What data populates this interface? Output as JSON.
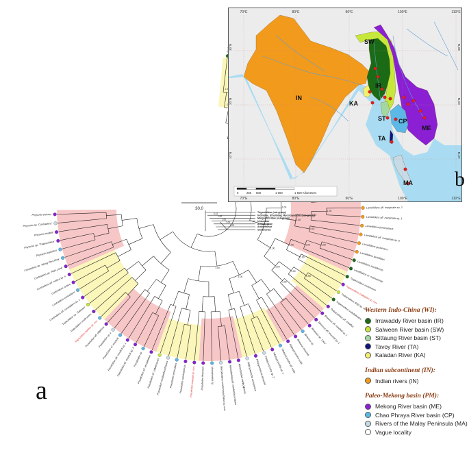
{
  "figure": {
    "panel_a_letter": "a",
    "panel_b_letter": "b",
    "scale_value": "30.0"
  },
  "colors": {
    "IR": "#1b6b16",
    "SW": "#c6e83a",
    "ST": "#a3d9a0",
    "TA": "#10137a",
    "KA": "#f5ef6e",
    "IN": "#f29a1c",
    "ME": "#8a1fd4",
    "CP": "#5cb8e6",
    "MA": "#c7dbe6",
    "VA": "#ffffff",
    "clade_pink": "#f7c6c6",
    "clade_yellow": "#fbf6b9",
    "new_species_red": "#e0302b",
    "ocean": "#a9dcf2",
    "land_gray": "#ececec",
    "rivers": "#5f9fd6"
  },
  "legend": {
    "wi_heading": "Western Indo-China (WI):",
    "in_heading": "Indian subcontinent (IN):",
    "pm_heading": "Paleo-Mekong basin (PM):",
    "items_wi": [
      {
        "key": "IR",
        "label": "Irrawaddy River basin (IR)"
      },
      {
        "key": "SW",
        "label": "Salween River basin (SW)"
      },
      {
        "key": "ST",
        "label": "Sittaung River basin (ST)"
      },
      {
        "key": "TA",
        "label": "Tavoy River (TA)"
      },
      {
        "key": "KA",
        "label": "Kaladan River (KA)"
      }
    ],
    "items_in": [
      {
        "key": "IN",
        "label": "Indian rivers (IN)"
      }
    ],
    "items_pm": [
      {
        "key": "ME",
        "label": "Mekong River basin (ME)"
      },
      {
        "key": "CP",
        "label": "Chao Phraya River basin (CP)"
      },
      {
        "key": "MA",
        "label": "Rivers of the Malay Peninsula (MA)"
      },
      {
        "key": "VA",
        "label": "Vague locality"
      }
    ]
  },
  "map": {
    "top_longitudes": [
      "70°E",
      "80°E",
      "90°E",
      "100°E",
      "110°E"
    ],
    "bottom_longitudes": [
      "70°E",
      "80°E",
      "90°E",
      "100°E",
      "110°E"
    ],
    "left_latitudes": [
      "30°N",
      "20°N",
      "10°N"
    ],
    "right_latitudes": [
      "30°N",
      "20°N",
      "10°N"
    ],
    "region_labels": [
      {
        "key": "SW",
        "label": "SW"
      },
      {
        "key": "IR",
        "label": "IR"
      },
      {
        "key": "IN",
        "label": "IN"
      },
      {
        "key": "KA",
        "label": "KA"
      },
      {
        "key": "ST",
        "label": "ST"
      },
      {
        "key": "CP",
        "label": "CP"
      },
      {
        "key": "ME",
        "label": "ME"
      },
      {
        "key": "TA",
        "label": "TA"
      },
      {
        "key": "MA",
        "label": "MA"
      }
    ],
    "scale_ticks": [
      "0",
      "250",
      "500",
      "1 000",
      "1 500 Kilometers"
    ]
  },
  "outgroups": [
    "Trigonioidae (out-group)",
    "Iridinidae, Etheriidae, Mycetopodidae (out-group)",
    "Margaritiferidae (out-group)",
    "Unionidae",
    "Anodontinae",
    "Ambleminae",
    "Gonideinae"
  ],
  "outgroup_supports": [
    "0.42",
    "1.00",
    "1.00",
    "1.00",
    "1.00"
  ],
  "tree_labels": [
    {
      "t": "Radiatula myitkyinae",
      "k": "IR"
    },
    {
      "t": "Radiatula mouhoti sp. nov.",
      "k": "ME",
      "red": true
    },
    {
      "t": "Radiatula cf. mouhoti",
      "k": "ME"
    },
    {
      "t": "Radiatula sp. from Laos",
      "k": "ME"
    },
    {
      "t": "Radiatula chaudhuri",
      "k": "IR"
    },
    {
      "t": "Radiatula aff. lopisi",
      "k": "IR"
    },
    {
      "t": "Radiatula pilvaensis",
      "k": "IR"
    },
    {
      "t": "Radiatula sp. 'Khlong'",
      "k": "CP"
    },
    {
      "t": "Radiatula aff. mandalayensis",
      "k": "IR"
    },
    {
      "t": "Indochinella pugio",
      "k": "IR"
    },
    {
      "t": "Indochinella sp. 2",
      "k": "IR"
    },
    {
      "t": "Leoparreysia aff. burmana",
      "k": "IR"
    },
    {
      "t": "Leoparreysia aff. tavoyensis",
      "k": "TA"
    },
    {
      "t": "Leoparreysia caudata sp. nov.",
      "k": "TA",
      "red": true
    },
    {
      "t": "Leoparreysia aff. khadakvaslaensis",
      "k": "IN"
    },
    {
      "t": "Leoparreysia aff. corrugata",
      "k": "IN"
    },
    {
      "t": "Leoparreysia bhamoensis",
      "k": "IR"
    },
    {
      "t": "Parreysia cf. corrugata sp. 3",
      "k": "IN"
    },
    {
      "t": "Parreysia cf. corrugata",
      "k": "IN"
    },
    {
      "t": "Parreysia cf. corrugata sp. 1",
      "k": "IN"
    },
    {
      "t": "Parreysia cf. favidens",
      "k": "IN"
    },
    {
      "t": "Lamellidens aff. marginalis sp. 5",
      "k": "IN"
    },
    {
      "t": "Lamellidens aff. marginalis sp. 4",
      "k": "IN"
    },
    {
      "t": "Lamellidens aff. marginalis sp. 3",
      "k": "IN"
    },
    {
      "t": "Lamellidens brandti sp. nov.",
      "k": "IN",
      "red": true
    },
    {
      "t": "Lamellidens aff. marginalis sp. 2",
      "k": "IN"
    },
    {
      "t": "Lamellidens aff. marginalis sp. 1",
      "k": "IN"
    },
    {
      "t": "Lamellidens jenkinsianus",
      "k": "IN"
    },
    {
      "t": "Lamellidens aff. marginalis sp. 6",
      "k": "IN"
    },
    {
      "t": "Lamellidens generosus",
      "k": "IN"
    },
    {
      "t": "Lamellidens lamellatus",
      "k": "IN"
    },
    {
      "t": "Lamellidens savadiensis",
      "k": "IR"
    },
    {
      "t": "Lamellidens cf. mainwaringi",
      "k": "IR"
    },
    {
      "t": "Trapezoideus exolescens",
      "k": "IR"
    },
    {
      "t": "Trapezoideus pallegoixi sp. nov.",
      "k": "ME",
      "red": true
    },
    {
      "t": "Trapezoideus dalyi sp. nov.",
      "k": "SW"
    },
    {
      "t": "Trapezoideus subclathratus",
      "k": "IR"
    },
    {
      "t": "Trapezoideus aff. misellus",
      "k": "ME"
    },
    {
      "t": "Bineurus aff. mouhoti sp. 1",
      "k": "ME"
    },
    {
      "t": "Bineurus aff. mouhoti sp. 2",
      "k": "ME"
    },
    {
      "t": "Bineurus sp. 'Laos'",
      "k": "ME"
    },
    {
      "t": "Bineurus sp.",
      "k": "CP"
    },
    {
      "t": "Bineurus mouhoti",
      "k": "ME"
    },
    {
      "t": "Pilsbryoconcha exilis",
      "k": "ME"
    },
    {
      "t": "Pilsbryoconcha aff. exilis",
      "k": "CP"
    },
    {
      "t": "Pilsbryoconcha sp. 1",
      "k": "ME"
    },
    {
      "t": "Pilsbryoconcha sp. 2",
      "k": "MA"
    },
    {
      "t": "Pilsbryoconcha lemeslei",
      "k": "ME"
    },
    {
      "t": "Pilsbryoconcha compressa",
      "k": "MA"
    },
    {
      "t": "Monodontina cambodjensis",
      "k": "ME"
    },
    {
      "t": "Monodontina aff. vondembuschiana",
      "k": "ME"
    },
    {
      "t": "Monodontina vondembuschiana sp. nov.",
      "k": "MA"
    },
    {
      "t": "Monodontina sp.",
      "k": "CP"
    },
    {
      "t": "Pseudodon thomsoni",
      "k": "ME"
    },
    {
      "t": "Pseudodon manueli sp. nov.",
      "k": "ME",
      "red": true
    },
    {
      "t": "Pseudodon cambodjensis",
      "k": "ME"
    },
    {
      "t": "Pseudodon inoscularis",
      "k": "CP"
    },
    {
      "t": "Pseudodon vondembuschianus",
      "k": "MA"
    },
    {
      "t": "Pseudodon aff. salwenianus",
      "k": "SW"
    },
    {
      "t": "Pseudodon aff. resupinatus",
      "k": "ME"
    },
    {
      "t": "Pseudodon sp.",
      "k": "CP"
    },
    {
      "t": "Pseudodon aff. mouhoti sp. 3",
      "k": "ME"
    },
    {
      "t": "Pseudodon aff. mouhoti sp. 1",
      "k": "ME"
    },
    {
      "t": "Pseudodon cf. mouhoti",
      "k": "CP"
    },
    {
      "t": "Pseudodon sp. 2",
      "k": "MA"
    },
    {
      "t": "Pseudodon aff. ellipticus",
      "k": "ME"
    },
    {
      "t": "Trapezidens panhai sp. nov.",
      "k": "CP",
      "red": true
    },
    {
      "t": "Trapezidens exolescens",
      "k": "ME"
    },
    {
      "t": "Trapezidens sp. 'Salween'",
      "k": "SW"
    },
    {
      "t": "Contradens aff. contradens sp. 1",
      "k": "ME"
    },
    {
      "t": "Contradens contradens",
      "k": "CP"
    },
    {
      "t": "Contradens rustica",
      "k": "ME"
    },
    {
      "t": "Contradens aff. rustica sp. n.",
      "k": "ME"
    },
    {
      "t": "Contradens sp. 'Nam Long'",
      "k": "ME"
    },
    {
      "t": "Contradens sp. 'Wong Phra Khai'",
      "k": "CP"
    },
    {
      "t": "Physunio superbus",
      "k": "CP"
    },
    {
      "t": "Physunio sp. 'Trapezoideus'",
      "k": "ME"
    },
    {
      "t": "Physunio modelli",
      "k": "ME"
    },
    {
      "t": "Physunio sp. 'Contradens'",
      "k": "MA"
    },
    {
      "t": "Physunio eximius",
      "k": "ME"
    }
  ],
  "node_supports": [
    "1.00",
    "1.00",
    "1.00",
    "0.99",
    "1.00",
    "0.97",
    "1.00",
    "1.00",
    "1.00",
    "0.96",
    "1.00",
    "1.00",
    "0.98",
    "1.00",
    "1.00",
    "1.00",
    "1.00",
    "1.00",
    "0.94",
    "1.00",
    "1.00",
    "1.00",
    "1.00",
    "0.99",
    "1.00",
    "1.00",
    "1.00",
    "1.00",
    "0.92",
    "1.00",
    "1.00",
    "1.00",
    "1.00",
    "1.00",
    "1.00",
    "1.00",
    "0.95",
    "1.00",
    "1.00",
    "1.00"
  ]
}
